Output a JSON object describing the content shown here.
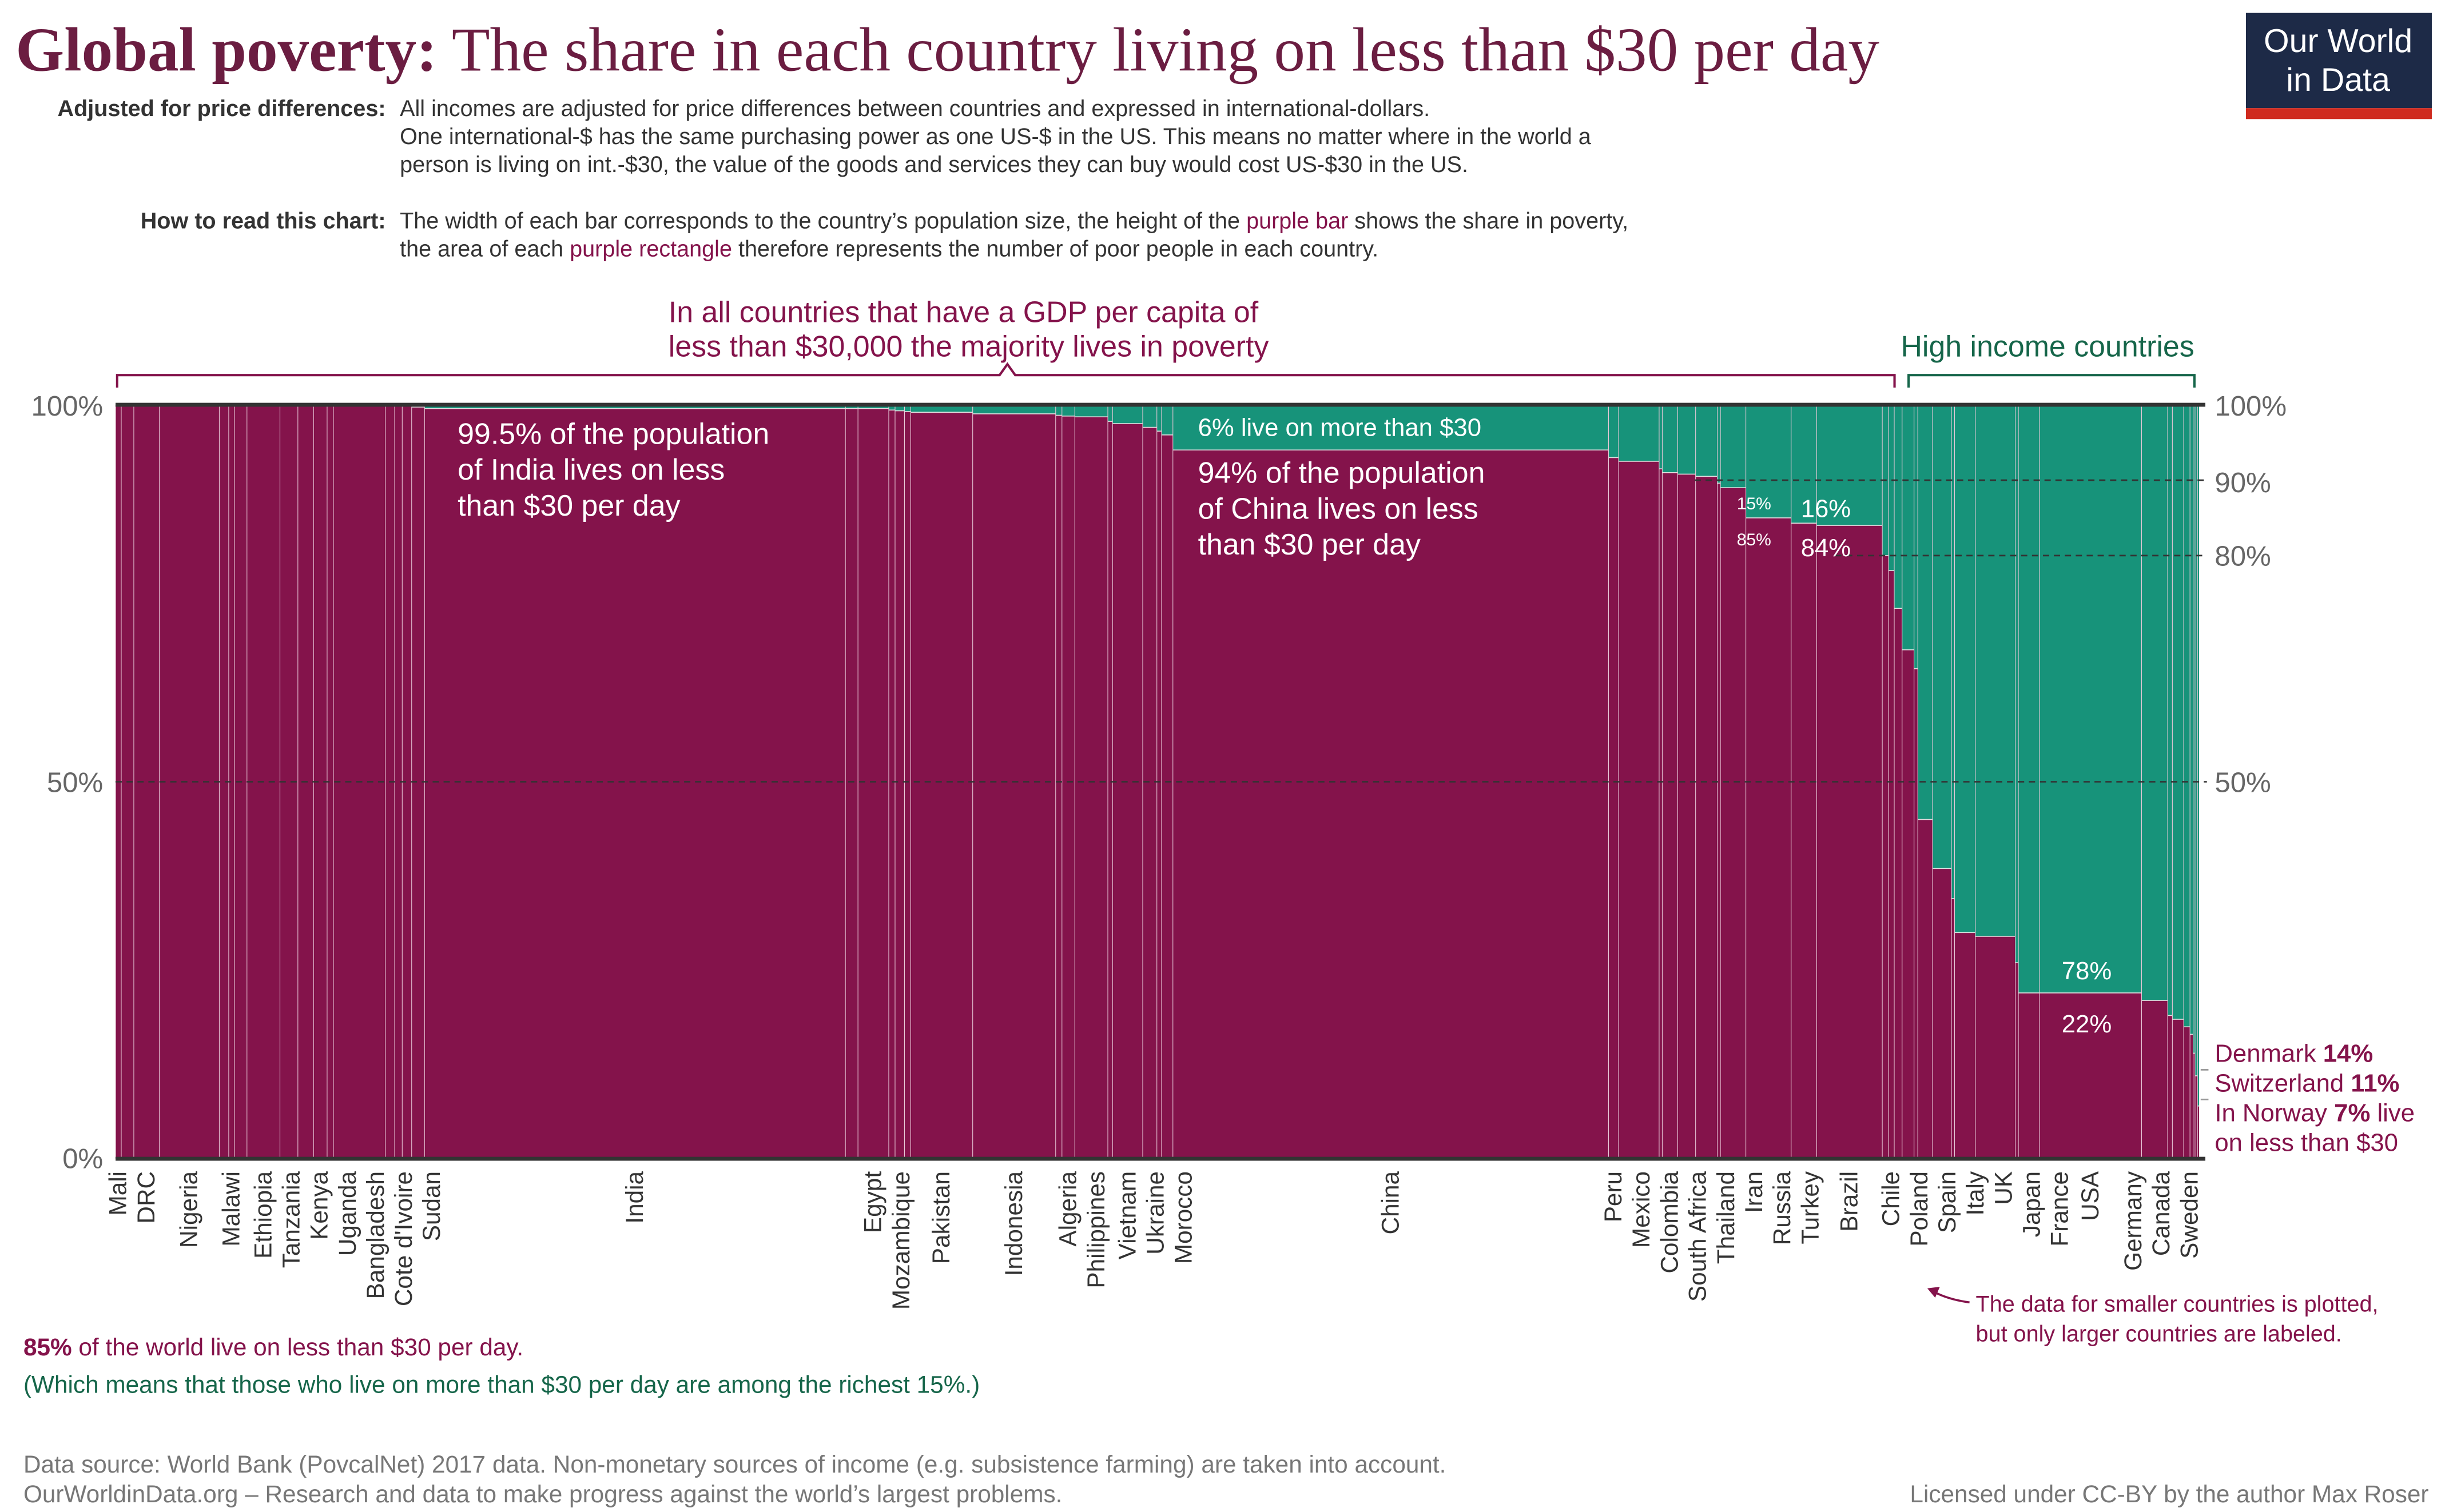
{
  "title": {
    "bold": "Global poverty:",
    "rest": " The share in each country living on less than $30 per day"
  },
  "logo": {
    "line1": "Our World",
    "line2": "in Data"
  },
  "notes": {
    "adjusted_label": "Adjusted for price differences:",
    "adjusted_lines": [
      "All incomes are adjusted for price differences between countries and expressed in international-dollars.",
      "One international-$ has the same purchasing power as one US-$ in the US. This means no matter where in the world a",
      "person is living on int.-$30, the value of the goods and services they can buy would cost US-$30 in the US."
    ],
    "howto_label": "How to read this chart:",
    "howto_l1a": "The width of each bar corresponds to the country’s population size, the height of the ",
    "howto_l1b": "purple bar",
    "howto_l1c": " shows the share in poverty,",
    "howto_l2a": "the area of each ",
    "howto_l2b": "purple rectangle",
    "howto_l2c": " therefore represents the number of poor people in each country."
  },
  "annotations": {
    "majority_l1": "In all countries that have a GDP per capita of",
    "majority_l2": "less than $30,000 the majority lives in poverty",
    "high_income": "High income countries",
    "india_l1": "99.5% of the population",
    "india_l2": "of India lives on less",
    "india_l3": "than $30 per day",
    "china_top": "6% live on more than $30",
    "china_l1": "94% of the population",
    "china_l2": "of China lives on less",
    "china_l3": "than $30 per day",
    "russia_top": "15%",
    "russia_bottom": "85%",
    "brazil_top": "16%",
    "brazil_bottom": "84%",
    "usa_top": "78%",
    "usa_bottom": "22%",
    "denmark_name": "Denmark ",
    "denmark_val": "14%",
    "switzerland_name": "Switzerland ",
    "switzerland_val": "11%",
    "norway_a": "In Norway ",
    "norway_b": "7%",
    "norway_c": " live",
    "norway_l2": "on less than $30",
    "small_note_l1": "The data for smaller countries is plotted,",
    "small_note_l2": "but only larger countries are labeled.",
    "world_a": "85%",
    "world_b": " of the world live on less than $30 per day.",
    "world_l2": "(Which means that those who live on more than $30 per day are among the richest 15%.)"
  },
  "footer": {
    "source": "Data source: World Bank (PovcalNet) 2017 data. Non-monetary sources of income (e.g. subsistence farming) are taken into account.",
    "tagline": "OurWorldinData.org – Research and data to make progress against the world’s largest problems.",
    "license": "Licensed under CC-BY by the author Max Roser"
  },
  "colors": {
    "poor": "#84134b",
    "nonpoor": "#17937a",
    "title": "#6b1d41",
    "green_text": "#16664a",
    "logo_bg": "#1d2a47",
    "logo_red": "#cf2a1e"
  },
  "chart_data": {
    "type": "bar",
    "variant": "variable-width (width = population, height = share)",
    "ylim": [
      0,
      100
    ],
    "left_ticks": [
      "100%",
      "50%",
      "0%"
    ],
    "right_ticks": [
      "100%",
      "90%",
      "80%",
      "50%"
    ],
    "series": [
      {
        "name": "purple bar",
        "field": "share"
      }
    ],
    "countries": [
      {
        "label": "Mali",
        "pop": 18,
        "share": 100
      },
      {
        "label": "",
        "pop": 40,
        "share": 100
      },
      {
        "label": "DRC",
        "pop": 81,
        "share": 100
      },
      {
        "label": "Nigeria",
        "pop": 191,
        "share": 100
      },
      {
        "label": "",
        "pop": 30,
        "share": 100
      },
      {
        "label": "Malawi",
        "pop": 18,
        "share": 100
      },
      {
        "label": "",
        "pop": 40,
        "share": 100
      },
      {
        "label": "Ethiopia",
        "pop": 105,
        "share": 100
      },
      {
        "label": "Tanzania",
        "pop": 57,
        "share": 100
      },
      {
        "label": "Kenya",
        "pop": 50,
        "share": 100
      },
      {
        "label": "Uganda",
        "pop": 43,
        "share": 100
      },
      {
        "label": "",
        "pop": 20,
        "share": 100
      },
      {
        "label": "Bangladesh",
        "pop": 165,
        "share": 99.9
      },
      {
        "label": "",
        "pop": 30,
        "share": 99.9
      },
      {
        "label": "Cote d'Ivoire",
        "pop": 24,
        "share": 99.8
      },
      {
        "label": "",
        "pop": 30,
        "share": 99.8
      },
      {
        "label": "Sudan",
        "pop": 41,
        "share": 99.7
      },
      {
        "label": "India",
        "pop": 1339,
        "share": 99.5
      },
      {
        "label": "",
        "pop": 40,
        "share": 99.5
      },
      {
        "label": "Egypt",
        "pop": 98,
        "share": 99.5
      },
      {
        "label": "",
        "pop": 20,
        "share": 99.3
      },
      {
        "label": "Mozambique",
        "pop": 30,
        "share": 99.2
      },
      {
        "label": "",
        "pop": 20,
        "share": 99.1
      },
      {
        "label": "Pakistan",
        "pop": 197,
        "share": 99
      },
      {
        "label": "Indonesia",
        "pop": 264,
        "share": 98.8
      },
      {
        "label": "",
        "pop": 20,
        "share": 98.6
      },
      {
        "label": "Algeria",
        "pop": 41,
        "share": 98.5
      },
      {
        "label": "Philippines",
        "pop": 105,
        "share": 98.4
      },
      {
        "label": "",
        "pop": 15,
        "share": 97.8
      },
      {
        "label": "Vietnam",
        "pop": 96,
        "share": 97.5
      },
      {
        "label": "Ukraine",
        "pop": 45,
        "share": 97
      },
      {
        "label": "",
        "pop": 15,
        "share": 96.5
      },
      {
        "label": "Morocco",
        "pop": 36,
        "share": 96
      },
      {
        "label": "China",
        "pop": 1386,
        "share": 94
      },
      {
        "label": "Peru",
        "pop": 32,
        "share": 93
      },
      {
        "label": "Mexico",
        "pop": 129,
        "share": 92.5
      },
      {
        "label": "",
        "pop": 10,
        "share": 91.5
      },
      {
        "label": "Colombia",
        "pop": 49,
        "share": 91
      },
      {
        "label": "South Africa",
        "pop": 57,
        "share": 90.8
      },
      {
        "label": "Thailand",
        "pop": 69,
        "share": 90.5
      },
      {
        "label": "",
        "pop": 10,
        "share": 89.6
      },
      {
        "label": "Iran",
        "pop": 81,
        "share": 89
      },
      {
        "label": "Russia",
        "pop": 144,
        "share": 85
      },
      {
        "label": "Turkey",
        "pop": 81,
        "share": 84.3
      },
      {
        "label": "Brazil",
        "pop": 209,
        "share": 84
      },
      {
        "label": "",
        "pop": 20,
        "share": 80
      },
      {
        "label": "Chile",
        "pop": 18,
        "share": 78
      },
      {
        "label": "",
        "pop": 25,
        "share": 73
      },
      {
        "label": "Poland",
        "pop": 38,
        "share": 67.5
      },
      {
        "label": "",
        "pop": 12,
        "share": 65
      },
      {
        "label": "Spain",
        "pop": 47,
        "share": 45
      },
      {
        "label": "Italy",
        "pop": 60,
        "share": 38.5
      },
      {
        "label": "",
        "pop": 10,
        "share": 34.5
      },
      {
        "label": "UK",
        "pop": 66,
        "share": 30
      },
      {
        "label": "Japan",
        "pop": 127,
        "share": 29.5
      },
      {
        "label": "",
        "pop": 10,
        "share": 26
      },
      {
        "label": "France",
        "pop": 67,
        "share": 22
      },
      {
        "label": "USA",
        "pop": 325,
        "share": 22
      },
      {
        "label": "Germany",
        "pop": 83,
        "share": 21
      },
      {
        "label": "",
        "pop": 15,
        "share": 19
      },
      {
        "label": "Canada",
        "pop": 36,
        "share": 18.5
      },
      {
        "label": "",
        "pop": 20,
        "share": 17.5
      },
      {
        "label": "Sweden",
        "pop": 10,
        "share": 16.5
      },
      {
        "label": "",
        "pop": 6,
        "share": 14
      },
      {
        "label": "",
        "pop": 8,
        "share": 11
      },
      {
        "label": "",
        "pop": 5,
        "share": 7
      }
    ]
  }
}
